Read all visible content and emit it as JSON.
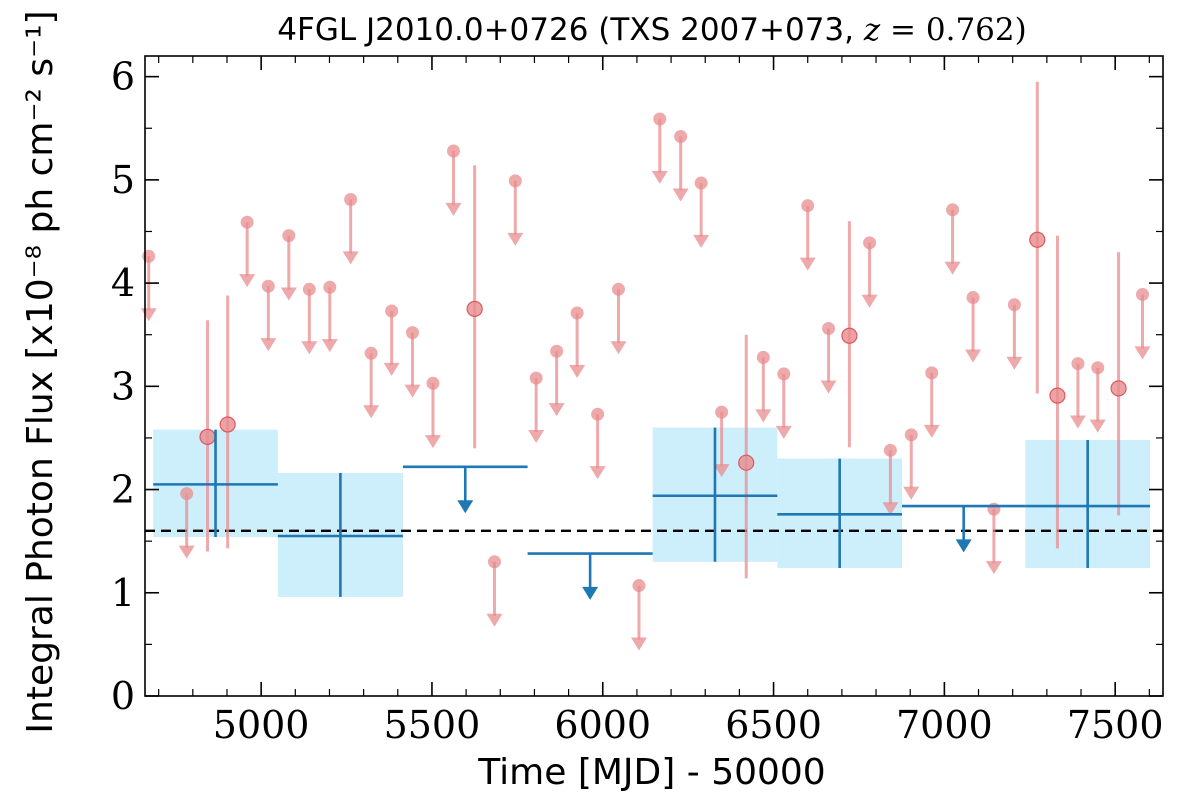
{
  "chart_data": {
    "type": "scatter",
    "title": "4FGL J2010.0+0726 (TXS 2007+073, z = 0.762)",
    "title_main": "4FGL J2010.0+0726 (TXS 2007+073, ",
    "title_z": "z",
    "title_eq": " = 0.762)",
    "xlabel": "Time [MJD] - 50000",
    "ylabel": "Integral Photon Flux [x10⁻⁸ ph cm⁻² s⁻¹]",
    "xlim": [
      4660,
      7640
    ],
    "ylim": [
      0,
      6.2
    ],
    "xticks": [
      5000,
      5500,
      6000,
      6500,
      7000,
      7500
    ],
    "yticks": [
      0,
      1,
      2,
      3,
      4,
      5,
      6
    ],
    "grid": false,
    "mean_flux": 1.6,
    "colors": {
      "monthly": "#e88c8f",
      "yearly": "#1f77b4",
      "band": "#cdeefb",
      "mean": "#000000"
    },
    "series": [
      {
        "kind": "detection",
        "points": [
          {
            "x": 4843,
            "y": 2.51,
            "lo": 1.4,
            "hi": 3.64
          },
          {
            "x": 4902,
            "y": 2.63,
            "lo": 1.43,
            "hi": 3.88
          },
          {
            "x": 5625,
            "y": 3.75,
            "lo": 2.4,
            "hi": 5.14
          },
          {
            "x": 6420,
            "y": 2.26,
            "lo": 1.14,
            "hi": 3.5
          },
          {
            "x": 6722,
            "y": 3.49,
            "lo": 2.41,
            "hi": 4.6
          },
          {
            "x": 7272,
            "y": 4.42,
            "lo": 2.93,
            "hi": 5.95
          },
          {
            "x": 7331,
            "y": 2.91,
            "lo": 1.43,
            "hi": 4.46
          },
          {
            "x": 7510,
            "y": 2.98,
            "lo": 1.75,
            "hi": 4.3
          }
        ]
      },
      {
        "kind": "upper_limit",
        "points": [
          {
            "x": 4671,
            "y": 4.26
          },
          {
            "x": 4782,
            "y": 1.96
          },
          {
            "x": 4959,
            "y": 4.59
          },
          {
            "x": 5021,
            "y": 3.97
          },
          {
            "x": 5081,
            "y": 4.46
          },
          {
            "x": 5141,
            "y": 3.94
          },
          {
            "x": 5201,
            "y": 3.96
          },
          {
            "x": 5262,
            "y": 4.81
          },
          {
            "x": 5322,
            "y": 3.32
          },
          {
            "x": 5382,
            "y": 3.73
          },
          {
            "x": 5443,
            "y": 3.52
          },
          {
            "x": 5503,
            "y": 3.03
          },
          {
            "x": 5563,
            "y": 5.28
          },
          {
            "x": 5683,
            "y": 1.3
          },
          {
            "x": 5744,
            "y": 4.99
          },
          {
            "x": 5805,
            "y": 3.08
          },
          {
            "x": 5865,
            "y": 3.34
          },
          {
            "x": 5925,
            "y": 3.71
          },
          {
            "x": 5985,
            "y": 2.73
          },
          {
            "x": 6046,
            "y": 3.94
          },
          {
            "x": 6106,
            "y": 1.07
          },
          {
            "x": 6167,
            "y": 5.59
          },
          {
            "x": 6228,
            "y": 5.42
          },
          {
            "x": 6288,
            "y": 4.97
          },
          {
            "x": 6348,
            "y": 2.75
          },
          {
            "x": 6470,
            "y": 3.28
          },
          {
            "x": 6530,
            "y": 3.12
          },
          {
            "x": 6600,
            "y": 4.75
          },
          {
            "x": 6661,
            "y": 3.56
          },
          {
            "x": 6781,
            "y": 4.39
          },
          {
            "x": 6842,
            "y": 2.38
          },
          {
            "x": 6903,
            "y": 2.53
          },
          {
            "x": 6963,
            "y": 3.13
          },
          {
            "x": 7024,
            "y": 4.71
          },
          {
            "x": 7084,
            "y": 3.86
          },
          {
            "x": 7145,
            "y": 1.81
          },
          {
            "x": 7205,
            "y": 3.79
          },
          {
            "x": 7391,
            "y": 3.22
          },
          {
            "x": 7449,
            "y": 3.18
          },
          {
            "x": 7580,
            "y": 3.89
          }
        ]
      },
      {
        "kind": "yearly_detection",
        "points": [
          {
            "x0": 4684,
            "x1": 5049,
            "y": 2.05,
            "lo": 1.54,
            "hi": 2.58
          },
          {
            "x0": 5049,
            "x1": 5415,
            "y": 1.55,
            "lo": 0.96,
            "hi": 2.16
          },
          {
            "x0": 6146,
            "x1": 6511,
            "y": 1.94,
            "lo": 1.3,
            "hi": 2.6
          },
          {
            "x0": 6511,
            "x1": 6876,
            "y": 1.76,
            "lo": 1.24,
            "hi": 2.3
          },
          {
            "x0": 7237,
            "x1": 7602,
            "y": 1.84,
            "lo": 1.24,
            "hi": 2.48
          }
        ]
      },
      {
        "kind": "yearly_upper_limit",
        "points": [
          {
            "x0": 5415,
            "x1": 5780,
            "y": 2.22
          },
          {
            "x0": 5780,
            "x1": 6146,
            "y": 1.38
          },
          {
            "x0": 6876,
            "x1": 7237,
            "y": 1.84
          }
        ]
      }
    ]
  }
}
